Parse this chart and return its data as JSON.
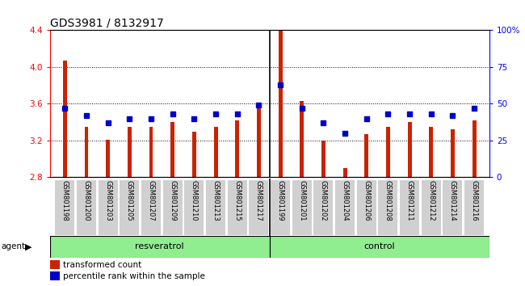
{
  "title": "GDS3981 / 8132917",
  "samples": [
    "GSM801198",
    "GSM801200",
    "GSM801203",
    "GSM801205",
    "GSM801207",
    "GSM801209",
    "GSM801210",
    "GSM801213",
    "GSM801215",
    "GSM801217",
    "GSM801199",
    "GSM801201",
    "GSM801202",
    "GSM801204",
    "GSM801206",
    "GSM801208",
    "GSM801211",
    "GSM801212",
    "GSM801214",
    "GSM801216"
  ],
  "transformed_count": [
    4.07,
    3.35,
    3.21,
    3.35,
    3.35,
    3.4,
    3.3,
    3.35,
    3.42,
    3.6,
    4.39,
    3.63,
    3.2,
    2.9,
    3.27,
    3.35,
    3.4,
    3.35,
    3.32,
    3.42
  ],
  "percentile_rank": [
    47,
    42,
    37,
    40,
    40,
    43,
    40,
    43,
    43,
    49,
    63,
    47,
    37,
    30,
    40,
    43,
    43,
    43,
    42,
    47
  ],
  "group_labels": [
    "resveratrol",
    "control"
  ],
  "group_counts": [
    10,
    10
  ],
  "bar_color": "#CC2200",
  "dot_color": "#0000CC",
  "ylim": [
    2.8,
    4.4
  ],
  "yticks": [
    2.8,
    3.2,
    3.6,
    4.0,
    4.4
  ],
  "y2lim": [
    0,
    100
  ],
  "y2ticks": [
    0,
    25,
    50,
    75,
    100
  ],
  "title_fontsize": 10,
  "bar_width": 0.18,
  "tick_label_fontsize": 6,
  "legend_labels": [
    "transformed count",
    "percentile rank within the sample"
  ],
  "agent_label": "agent",
  "green_color": "#90EE90",
  "tick_box_color": "#d0d0d0",
  "grid_yticks": [
    3.2,
    3.6,
    4.0
  ]
}
